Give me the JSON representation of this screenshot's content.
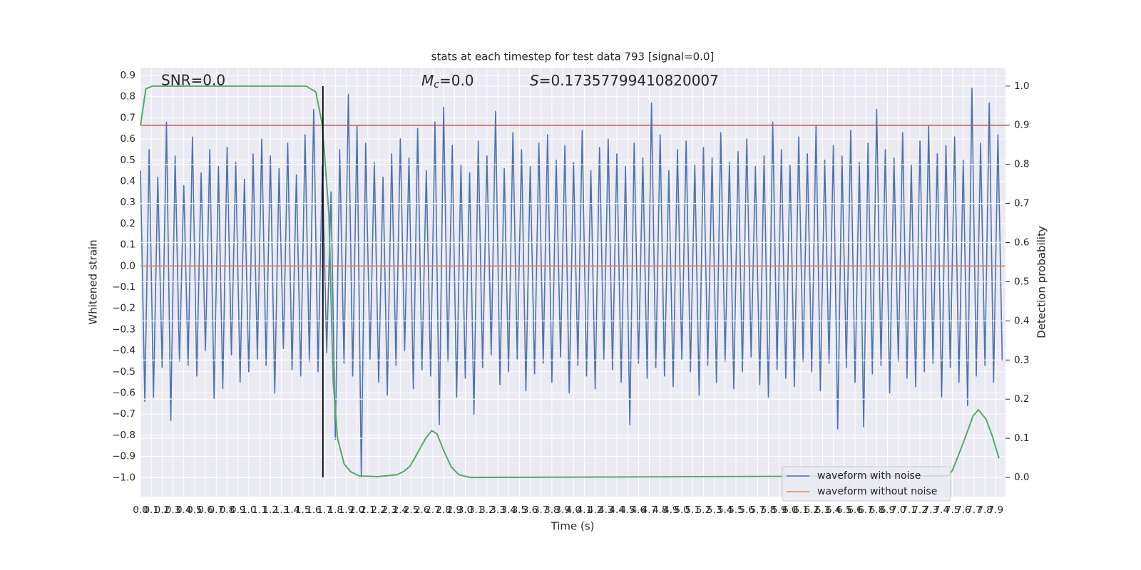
{
  "chart_data": {
    "type": "line",
    "title": "stats at each timestep for test data 793 [signal=0.0]",
    "xlabel": "Time (s)",
    "ylabel": "Whitened strain",
    "y2label": "Detection probability",
    "annotations": {
      "snr": "SNR=0.0",
      "mc": {
        "symbol": "M",
        "subscript": "c",
        "text": "=0.0"
      },
      "s": {
        "symbol": "S",
        "text": "=0.17357799410820007"
      }
    },
    "xlim": [
      0,
      7.99
    ],
    "ylim": [
      -1.09,
      0.937
    ],
    "y2lim": [
      -0.049,
      1.047
    ],
    "grid": true,
    "legend": "lower right",
    "xticks": [
      {
        "value": 0,
        "label": "0.0"
      },
      0.1,
      0.2,
      0.3,
      0.4,
      0.5,
      0.6,
      0.7,
      0.8,
      0.9,
      {
        "value": 1,
        "label": "1.0"
      },
      1.1,
      1.2,
      1.3,
      1.4,
      1.5,
      1.6,
      1.7,
      1.8,
      1.9,
      {
        "value": 2,
        "label": "2.0"
      },
      2.1,
      2.2,
      2.3,
      2.4,
      2.5,
      2.6,
      2.7,
      2.8,
      2.9,
      {
        "value": 3,
        "label": "3.0"
      },
      3.1,
      3.2,
      3.3,
      3.4,
      3.5,
      3.6,
      3.7,
      3.8,
      3.9,
      {
        "value": 4,
        "label": "4.0"
      },
      4.1,
      4.2,
      4.3,
      4.4,
      4.5,
      4.6,
      4.7,
      4.8,
      4.9,
      {
        "value": 5,
        "label": "5.0"
      },
      5.1,
      5.2,
      5.3,
      5.4,
      5.5,
      5.6,
      5.7,
      5.8,
      5.9,
      {
        "value": 6,
        "label": "6.0"
      },
      6.1,
      6.2,
      6.3,
      6.4,
      6.5,
      6.6,
      6.7,
      6.8,
      6.9,
      {
        "value": 7,
        "label": "7.0"
      },
      7.1,
      7.2,
      7.3,
      7.4,
      7.5,
      7.6,
      7.7,
      7.8,
      7.9
    ],
    "yticks": [
      {
        "value": -1,
        "label": "−1.0"
      },
      {
        "value": -0.9,
        "label": "−0.9"
      },
      {
        "value": -0.8,
        "label": "−0.8"
      },
      {
        "value": -0.7,
        "label": "−0.7"
      },
      {
        "value": -0.6,
        "label": "−0.6"
      },
      {
        "value": -0.5,
        "label": "−0.5"
      },
      {
        "value": -0.4,
        "label": "−0.4"
      },
      {
        "value": -0.3,
        "label": "−0.3"
      },
      {
        "value": -0.2,
        "label": "−0.2"
      },
      {
        "value": -0.1,
        "label": "−0.1"
      },
      {
        "value": 0,
        "label": "0.0"
      },
      0.1,
      0.2,
      0.3,
      0.4,
      0.5,
      0.6,
      0.7,
      0.8,
      0.9
    ],
    "y2ticks": [
      {
        "value": 0,
        "label": "0.0"
      },
      0.1,
      0.2,
      0.3,
      0.4,
      0.5,
      0.6,
      0.7,
      0.8,
      0.9,
      {
        "value": 1,
        "label": "1.0"
      }
    ],
    "series": [
      {
        "name": "waveform with noise",
        "color": "#4c72b0",
        "x": [
          0,
          0.04,
          0.08,
          0.12,
          0.16,
          0.2,
          0.24,
          0.28,
          0.32,
          0.36,
          0.4,
          0.44,
          0.48,
          0.52,
          0.56,
          0.6,
          0.64,
          0.68,
          0.72,
          0.76,
          0.8,
          0.84,
          0.88,
          0.92,
          0.96,
          1,
          1.04,
          1.08,
          1.12,
          1.16,
          1.2,
          1.24,
          1.28,
          1.32,
          1.36,
          1.4,
          1.44,
          1.48,
          1.52,
          1.56,
          1.6,
          1.64,
          1.68,
          1.72,
          1.76,
          1.8,
          1.84,
          1.88,
          1.92,
          1.96,
          2,
          2.04,
          2.08,
          2.12,
          2.16,
          2.2,
          2.24,
          2.28,
          2.32,
          2.36,
          2.4,
          2.44,
          2.48,
          2.52,
          2.56,
          2.6,
          2.64,
          2.68,
          2.72,
          2.76,
          2.8,
          2.84,
          2.88,
          2.92,
          2.96,
          3,
          3.04,
          3.08,
          3.12,
          3.16,
          3.2,
          3.24,
          3.28,
          3.32,
          3.36,
          3.4,
          3.44,
          3.48,
          3.52,
          3.56,
          3.6,
          3.64,
          3.68,
          3.72,
          3.76,
          3.8,
          3.84,
          3.88,
          3.92,
          3.96,
          4,
          4.04,
          4.08,
          4.12,
          4.16,
          4.2,
          4.24,
          4.28,
          4.32,
          4.36,
          4.4,
          4.44,
          4.48,
          4.52,
          4.56,
          4.6,
          4.64,
          4.68,
          4.72,
          4.76,
          4.8,
          4.84,
          4.88,
          4.92,
          4.96,
          5,
          5.04,
          5.08,
          5.12,
          5.16,
          5.2,
          5.24,
          5.28,
          5.32,
          5.36,
          5.4,
          5.44,
          5.48,
          5.52,
          5.56,
          5.6,
          5.64,
          5.68,
          5.72,
          5.76,
          5.8,
          5.84,
          5.88,
          5.92,
          5.96,
          6,
          6.04,
          6.08,
          6.12,
          6.16,
          6.2,
          6.24,
          6.28,
          6.32,
          6.36,
          6.4,
          6.44,
          6.48,
          6.52,
          6.56,
          6.6,
          6.64,
          6.68,
          6.72,
          6.76,
          6.8,
          6.84,
          6.88,
          6.92,
          6.96,
          7,
          7.04,
          7.08,
          7.12,
          7.16,
          7.2,
          7.24,
          7.28,
          7.32,
          7.36,
          7.4,
          7.44,
          7.48,
          7.52,
          7.56,
          7.6,
          7.64,
          7.68,
          7.72,
          7.76,
          7.8,
          7.84,
          7.88,
          7.92,
          7.96
        ],
        "values": [
          0.45,
          -0.64,
          0.55,
          -0.62,
          0.42,
          -0.48,
          0.68,
          -0.73,
          0.52,
          -0.45,
          0.38,
          -0.47,
          0.61,
          -0.52,
          0.44,
          -0.4,
          0.55,
          -0.63,
          0.47,
          -0.58,
          0.56,
          -0.42,
          0.49,
          -0.55,
          0.41,
          -0.5,
          0.53,
          -0.44,
          0.6,
          -0.47,
          0.52,
          -0.6,
          0.46,
          -0.39,
          0.58,
          -0.49,
          0.43,
          -0.52,
          0.62,
          -0.45,
          0.74,
          -0.5,
          0.48,
          -0.41,
          0.35,
          -0.82,
          0.55,
          -0.46,
          0.81,
          -0.52,
          0.66,
          -1.0,
          0.58,
          -0.44,
          0.49,
          -0.55,
          0.42,
          -0.61,
          0.53,
          -0.47,
          0.6,
          -0.4,
          0.51,
          -0.58,
          0.65,
          -0.49,
          0.45,
          -0.52,
          0.68,
          -0.75,
          0.75,
          -0.45,
          0.57,
          -0.62,
          0.48,
          -0.53,
          0.44,
          -0.7,
          0.59,
          -0.48,
          0.52,
          -0.42,
          0.73,
          -0.56,
          0.46,
          -0.5,
          0.63,
          -0.44,
          0.55,
          -0.59,
          0.47,
          -0.51,
          0.58,
          -0.46,
          0.62,
          -0.55,
          0.5,
          -0.43,
          0.57,
          -0.6,
          0.49,
          -0.47,
          0.64,
          -0.52,
          0.45,
          -0.58,
          0.56,
          -0.44,
          0.6,
          -0.49,
          0.53,
          -0.55,
          0.47,
          -0.75,
          0.58,
          -0.46,
          0.51,
          -0.53,
          0.77,
          -0.48,
          0.62,
          -0.52,
          0.45,
          -0.57,
          0.55,
          -0.44,
          0.59,
          -0.5,
          0.48,
          -0.61,
          0.56,
          -0.47,
          0.51,
          -0.55,
          0.63,
          -0.45,
          0.49,
          -0.58,
          0.54,
          -0.5,
          0.6,
          -0.43,
          0.47,
          -0.56,
          0.52,
          -0.62,
          0.68,
          -0.49,
          0.55,
          -0.53,
          0.48,
          -0.57,
          0.61,
          -0.45,
          0.53,
          -0.5,
          0.66,
          -0.59,
          0.5,
          -0.46,
          0.57,
          -0.77,
          0.52,
          -0.48,
          0.64,
          -0.55,
          0.49,
          -0.76,
          0.58,
          -0.51,
          0.74,
          -0.47,
          0.55,
          -0.6,
          0.51,
          -0.45,
          0.63,
          -0.53,
          0.48,
          -0.57,
          0.59,
          -0.5,
          0.66,
          -0.46,
          0.53,
          -0.62,
          0.57,
          -0.48,
          0.61,
          -0.55,
          0.5,
          -0.66,
          0.84,
          -0.52,
          0.58,
          -0.47,
          0.77,
          -0.55,
          0.62,
          -0.45
        ]
      },
      {
        "name": "waveform without noise",
        "color": "#dd8452",
        "x": [
          0,
          7.99
        ],
        "values": [
          0,
          0
        ]
      },
      {
        "color": "#55a868",
        "axis": "y2",
        "x": [
          0,
          0.05,
          0.11,
          1.53,
          1.62,
          1.68,
          1.74,
          1.78,
          1.82,
          1.88,
          1.94,
          2.02,
          2.19,
          2.37,
          2.43,
          2.49,
          2.55,
          2.63,
          2.69,
          2.74,
          2.8,
          2.87,
          2.94,
          3.01,
          3.06,
          7.46,
          7.5,
          7.56,
          7.63,
          7.69,
          7.74,
          7.81,
          7.87,
          7.93
        ],
        "values": [
          0.9,
          0.993,
          1.0,
          1.0,
          0.985,
          0.9,
          0.674,
          0.246,
          0.1,
          0.035,
          0.015,
          0.004,
          0.002,
          0.007,
          0.015,
          0.029,
          0.058,
          0.098,
          0.12,
          0.111,
          0.069,
          0.027,
          0.007,
          0.002,
          0,
          0.004,
          0.018,
          0.06,
          0.111,
          0.157,
          0.173,
          0.149,
          0.104,
          0.049
        ]
      }
    ],
    "hlines": [
      {
        "y": 0.9,
        "axis": "y2",
        "color": "#c44e52"
      }
    ],
    "vlines": [
      {
        "x": 1.685,
        "ymin": 0,
        "ymax": 1,
        "axis": "y2",
        "color": "#000000"
      }
    ]
  }
}
